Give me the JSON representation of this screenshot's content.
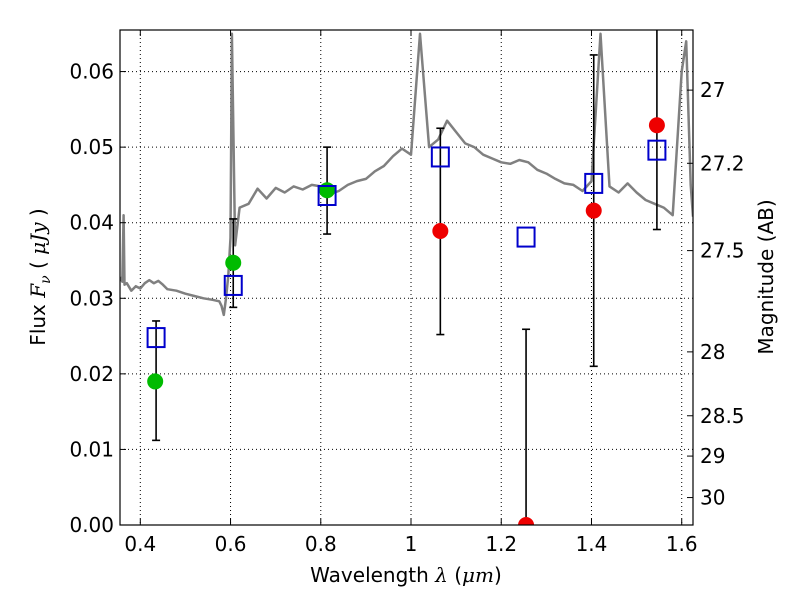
{
  "chart_data": {
    "type": "scatter",
    "xlabel": {
      "pre": "Wavelength ",
      "sym": "λ",
      "open": " (",
      "unit": "μm",
      "close": ")"
    },
    "ylabel": {
      "pre": "Flux ",
      "sym": "F",
      "sub": "ν",
      "open": " ( ",
      "unit": "μJy",
      "close": " )"
    },
    "y2label": "Magnitude (AB)",
    "xlim": [
      0.355,
      1.625
    ],
    "ylim": [
      0.0,
      0.0655
    ],
    "grid": true,
    "xticks": [
      {
        "v": 0.4,
        "label": "0.4"
      },
      {
        "v": 0.6,
        "label": "0.6"
      },
      {
        "v": 0.8,
        "label": "0.8"
      },
      {
        "v": 1.0,
        "label": "1"
      },
      {
        "v": 1.2,
        "label": "1.2"
      },
      {
        "v": 1.4,
        "label": "1.4"
      },
      {
        "v": 1.6,
        "label": "1.6"
      }
    ],
    "yticks": [
      {
        "v": 0.0,
        "label": "0.00"
      },
      {
        "v": 0.01,
        "label": "0.01"
      },
      {
        "v": 0.02,
        "label": "0.02"
      },
      {
        "v": 0.03,
        "label": "0.03"
      },
      {
        "v": 0.04,
        "label": "0.04"
      },
      {
        "v": 0.05,
        "label": "0.05"
      },
      {
        "v": 0.06,
        "label": "0.06"
      }
    ],
    "y2ticks": [
      {
        "mag": 27,
        "label": "27"
      },
      {
        "mag": 27.2,
        "label": "27.2"
      },
      {
        "mag": 27.5,
        "label": "27.5"
      },
      {
        "mag": 28,
        "label": "28"
      },
      {
        "mag": 28.5,
        "label": "28.5"
      },
      {
        "mag": 29,
        "label": "29"
      },
      {
        "mag": 30,
        "label": "30"
      }
    ],
    "colors": {
      "spectrum": "#808080",
      "green": "#00bb00",
      "red": "#ee0000",
      "box": "#0000cc",
      "errorbar": "#000000",
      "grid": "#000000"
    },
    "series": [
      {
        "kind": "model_spectrum",
        "x": [
          0.355,
          0.36,
          0.363,
          0.365,
          0.37,
          0.38,
          0.39,
          0.4,
          0.41,
          0.42,
          0.43,
          0.44,
          0.45,
          0.46,
          0.48,
          0.5,
          0.52,
          0.54,
          0.56,
          0.575,
          0.58,
          0.585,
          0.59,
          0.595,
          0.6,
          0.603,
          0.61,
          0.62,
          0.64,
          0.66,
          0.68,
          0.7,
          0.72,
          0.74,
          0.76,
          0.78,
          0.8,
          0.82,
          0.84,
          0.86,
          0.88,
          0.9,
          0.92,
          0.94,
          0.96,
          0.98,
          1.0,
          1.02,
          1.04,
          1.06,
          1.08,
          1.1,
          1.12,
          1.14,
          1.16,
          1.18,
          1.2,
          1.22,
          1.24,
          1.26,
          1.28,
          1.3,
          1.32,
          1.34,
          1.36,
          1.38,
          1.4,
          1.42,
          1.44,
          1.46,
          1.48,
          1.5,
          1.52,
          1.54,
          1.56,
          1.58,
          1.6,
          1.61,
          1.62,
          1.625
        ],
        "y": [
          0.0328,
          0.0322,
          0.041,
          0.0318,
          0.032,
          0.031,
          0.0316,
          0.0313,
          0.032,
          0.0324,
          0.032,
          0.0323,
          0.0318,
          0.0312,
          0.031,
          0.0306,
          0.0303,
          0.03,
          0.0298,
          0.0296,
          0.029,
          0.0278,
          0.03,
          0.033,
          0.038,
          0.065,
          0.037,
          0.042,
          0.0425,
          0.0445,
          0.0432,
          0.0446,
          0.044,
          0.0448,
          0.0444,
          0.045,
          0.0448,
          0.0438,
          0.0442,
          0.045,
          0.0455,
          0.0458,
          0.0468,
          0.0475,
          0.0488,
          0.0498,
          0.049,
          0.065,
          0.05,
          0.051,
          0.0535,
          0.052,
          0.0505,
          0.05,
          0.049,
          0.0485,
          0.048,
          0.0478,
          0.0483,
          0.048,
          0.047,
          0.0465,
          0.0458,
          0.0452,
          0.045,
          0.0442,
          0.0455,
          0.065,
          0.0448,
          0.044,
          0.0452,
          0.044,
          0.043,
          0.0425,
          0.042,
          0.041,
          0.06,
          0.064,
          0.045,
          0.0408
        ]
      },
      {
        "kind": "observed_green",
        "points": [
          {
            "x": 0.433,
            "y": 0.019
          },
          {
            "x": 0.606,
            "y": 0.0347
          },
          {
            "x": 0.814,
            "y": 0.0443
          }
        ]
      },
      {
        "kind": "observed_red",
        "points": [
          {
            "x": 1.065,
            "y": 0.0389
          },
          {
            "x": 1.255,
            "y": 0.0
          },
          {
            "x": 1.405,
            "y": 0.0416
          },
          {
            "x": 1.545,
            "y": 0.0529
          }
        ]
      },
      {
        "kind": "model_bandpass",
        "points": [
          {
            "x": 0.435,
            "y": 0.0248
          },
          {
            "x": 0.606,
            "y": 0.0317
          },
          {
            "x": 0.814,
            "y": 0.0436
          },
          {
            "x": 1.065,
            "y": 0.0487
          },
          {
            "x": 1.255,
            "y": 0.0381
          },
          {
            "x": 1.405,
            "y": 0.0452
          },
          {
            "x": 1.545,
            "y": 0.0496
          }
        ]
      },
      {
        "kind": "error_bars",
        "bars": [
          {
            "x": 0.435,
            "lo": 0.0112,
            "hi": 0.027
          },
          {
            "x": 0.606,
            "lo": 0.0288,
            "hi": 0.0405
          },
          {
            "x": 0.814,
            "lo": 0.0385,
            "hi": 0.05
          },
          {
            "x": 1.065,
            "lo": 0.0252,
            "hi": 0.0525
          },
          {
            "x": 1.255,
            "lo": 0.0,
            "hi": 0.0259
          },
          {
            "x": 1.405,
            "lo": 0.021,
            "hi": 0.0622
          },
          {
            "x": 1.545,
            "lo": 0.0391,
            "hi": 0.066
          }
        ]
      }
    ]
  }
}
